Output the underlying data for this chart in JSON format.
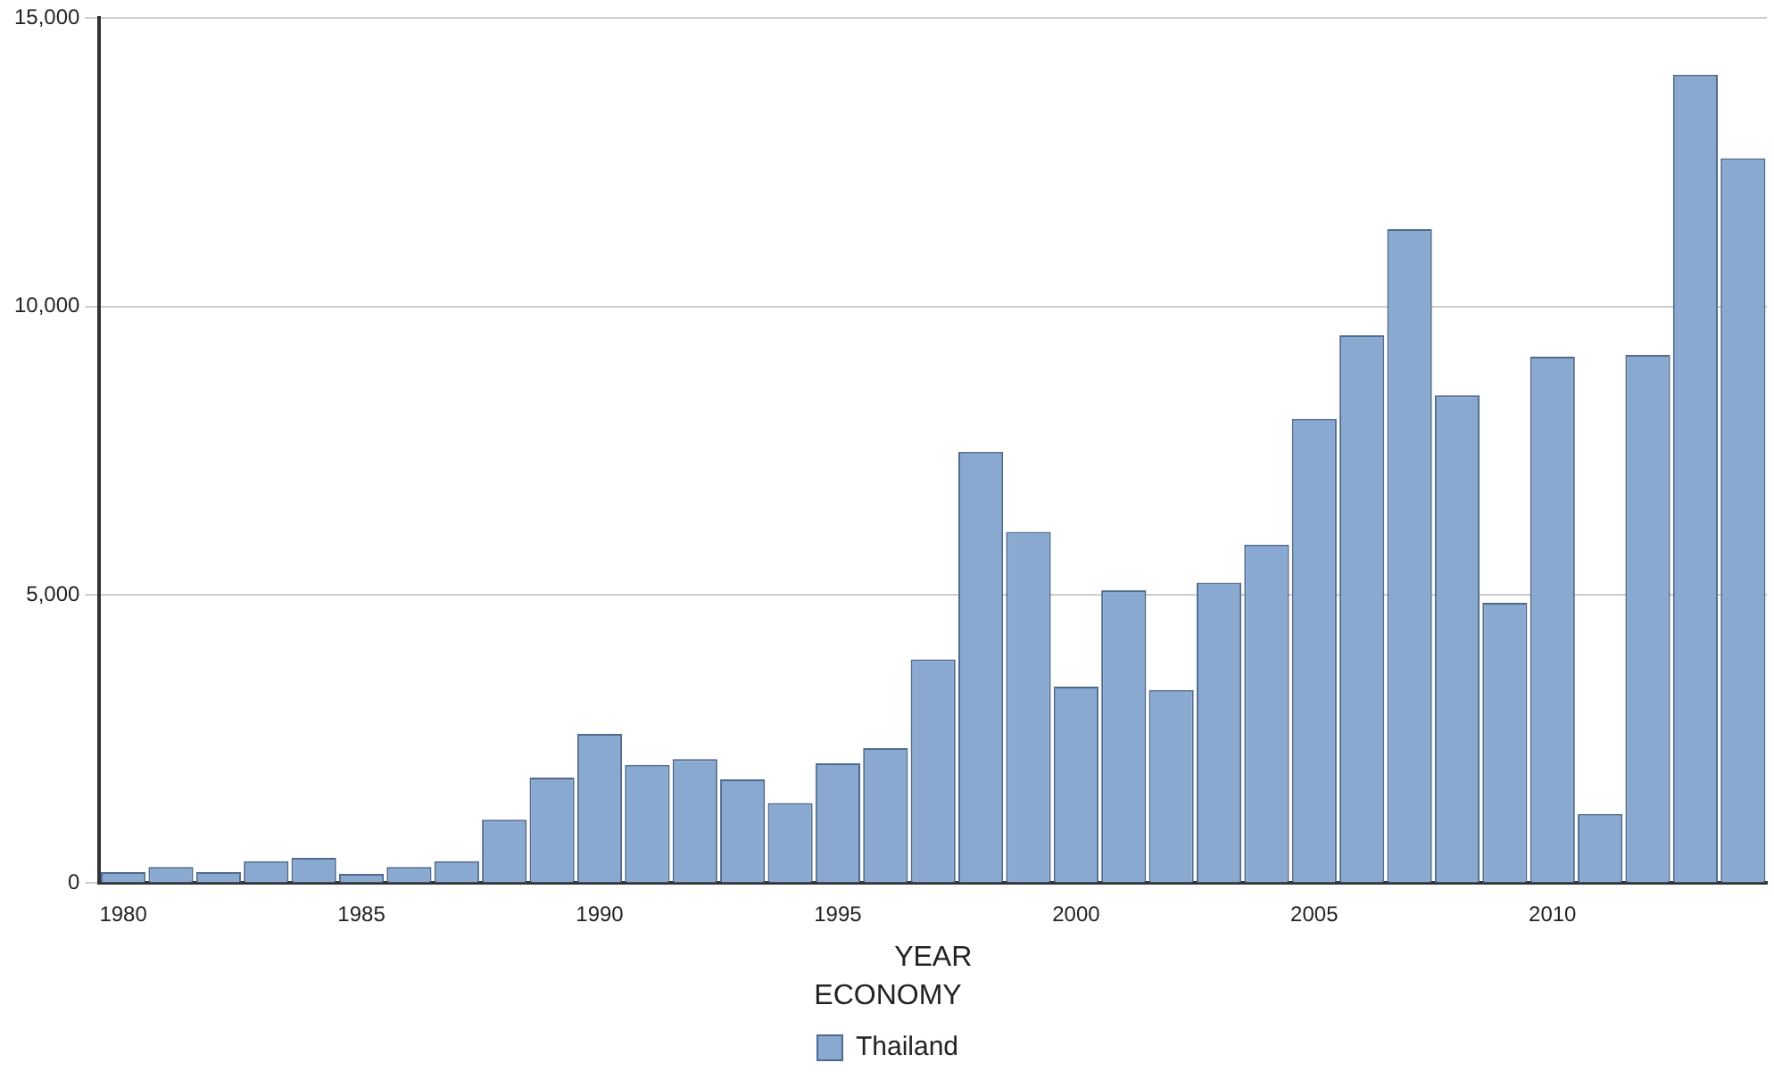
{
  "chart_data": {
    "type": "bar",
    "xlabel": "YEAR",
    "legend_title": "ECONOMY",
    "categories": [
      "1980",
      null,
      null,
      null,
      null,
      "1985",
      null,
      null,
      null,
      null,
      "1990",
      null,
      null,
      null,
      null,
      "1995",
      null,
      null,
      null,
      null,
      "2000",
      null,
      null,
      null,
      null,
      "2005",
      null,
      null,
      null,
      null,
      "2010",
      null,
      null,
      null,
      null
    ],
    "series": [
      {
        "name": "Thailand",
        "color": "#8aa9d0",
        "values": [
          190,
          280,
          190,
          380,
          440,
          160,
          280,
          380,
          1100,
          1830,
          2590,
          2050,
          2150,
          1800,
          1390,
          2080,
          2340,
          3880,
          7480,
          6090,
          3410,
          5080,
          3350,
          5210,
          5870,
          8050,
          9500,
          11340,
          8460,
          4860,
          9130,
          1200,
          9160,
          14020,
          12570
        ]
      }
    ],
    "ylim": [
      0,
      15000
    ],
    "yticks": [
      {
        "value": 0,
        "label": "0"
      },
      {
        "value": 5000,
        "label": "5,000"
      },
      {
        "value": 10000,
        "label": "10,000"
      },
      {
        "value": 15000,
        "label": "15,000"
      }
    ],
    "grid": "y",
    "legend": "bottom"
  }
}
